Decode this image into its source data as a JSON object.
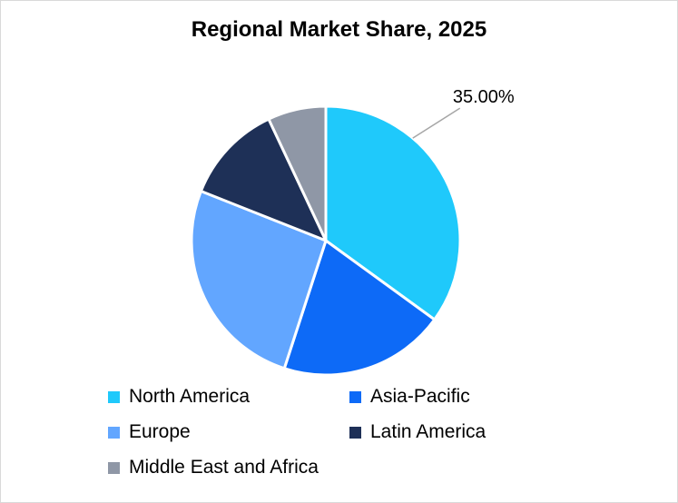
{
  "chart_data": {
    "type": "pie",
    "title": "Regional Market Share, 2025",
    "slices": [
      {
        "label": "North America",
        "value": 35.0,
        "color": "#1FC9FB",
        "data_label": "35.00%"
      },
      {
        "label": "Asia-Pacific",
        "value": 20.0,
        "color": "#0D6AF7",
        "data_label": ""
      },
      {
        "label": "Europe",
        "value": 26.0,
        "color": "#62A6FF",
        "data_label": ""
      },
      {
        "label": "Latin America",
        "value": 12.0,
        "color": "#1E3057",
        "data_label": ""
      },
      {
        "label": "Middle East and Africa",
        "value": 7.0,
        "color": "#8F97A6",
        "data_label": ""
      }
    ],
    "legend_position": "bottom"
  }
}
